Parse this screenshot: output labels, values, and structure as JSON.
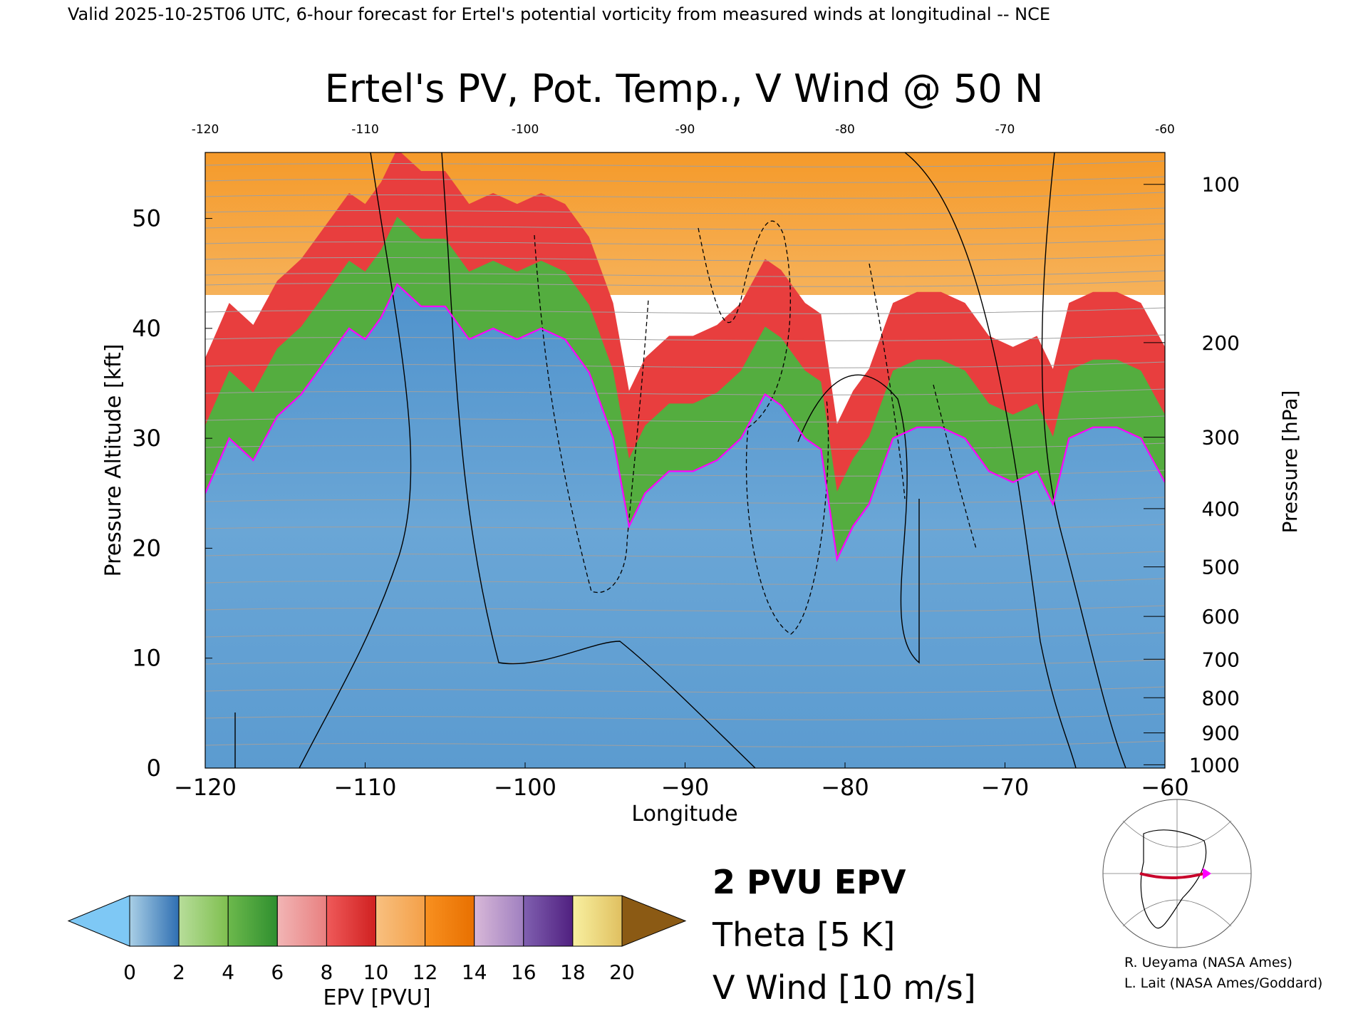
{
  "header_text": "Valid 2025-10-25T06 UTC, 6-hour forecast for Ertel's potential vorticity from measured winds at longitudinal -- NCE",
  "chart_data": {
    "type": "heatmap",
    "title": "Ertel's PV, Pot. Temp., V Wind @ 50 N",
    "xlabel": "Longitude",
    "ylabel_left": "Pressure Altitude [kft]",
    "ylabel_right": "Pressure [hPa]",
    "xlim": [
      -120,
      -60
    ],
    "ylim": [
      0,
      56
    ],
    "x_ticks": [
      -120,
      -110,
      -100,
      -90,
      -80,
      -70,
      -60
    ],
    "x_tick_labels": [
      "−120",
      "−110",
      "−100",
      "−90",
      "−80",
      "−70",
      "−60"
    ],
    "top_x_tick_labels": [
      "-120",
      "-110",
      "-100",
      "-90",
      "-80",
      "-70",
      "-60"
    ],
    "y_ticks": [
      0,
      10,
      20,
      30,
      40,
      50
    ],
    "y_tick_labels": [
      "0",
      "10",
      "20",
      "30",
      "40",
      "50"
    ],
    "pressure_ticks": [
      {
        "hpa": 100,
        "kft": 53.1,
        "label": "100"
      },
      {
        "hpa": 200,
        "kft": 38.7,
        "label": "200"
      },
      {
        "hpa": 300,
        "kft": 30.1,
        "label": "300"
      },
      {
        "hpa": 400,
        "kft": 23.6,
        "label": "400"
      },
      {
        "hpa": 500,
        "kft": 18.3,
        "label": "500"
      },
      {
        "hpa": 600,
        "kft": 13.8,
        "label": "600"
      },
      {
        "hpa": 700,
        "kft": 9.9,
        "label": "700"
      },
      {
        "hpa": 800,
        "kft": 6.4,
        "label": "800"
      },
      {
        "hpa": 900,
        "kft": 3.2,
        "label": "900"
      },
      {
        "hpa": 1000,
        "kft": 0.3,
        "label": "1000"
      }
    ],
    "pv_2pvu_line": {
      "lon": [
        -120,
        -118.5,
        -117,
        -115.5,
        -114,
        -112.5,
        -111,
        -110,
        -109,
        -108,
        -106.5,
        -105,
        -103.5,
        -102,
        -100.5,
        -99,
        -97.5,
        -96,
        -94.5,
        -93.5,
        -92.5,
        -91,
        -89.5,
        -88,
        -86.5,
        -85,
        -84,
        -82.5,
        -81.5,
        -80.5,
        -79.5,
        -78.5,
        -77,
        -75.5,
        -74,
        -72.5,
        -71,
        -69.5,
        -68,
        -67,
        -66,
        -64.5,
        -63,
        -61.5,
        -60
      ],
      "kft": [
        25,
        30,
        28,
        32,
        34,
        37,
        40,
        39,
        41,
        44,
        42,
        42,
        39,
        40,
        39,
        40,
        39,
        36,
        30,
        22,
        25,
        27,
        27,
        28,
        30,
        34,
        33,
        30,
        29,
        19,
        22,
        24,
        30,
        31,
        31,
        30,
        27,
        26,
        27,
        24,
        30,
        31,
        31,
        30,
        26
      ]
    },
    "pv_colorbar": {
      "label": "EPV [PVU]",
      "tick_labels": [
        "0",
        "2",
        "4",
        "6",
        "8",
        "10",
        "12",
        "14",
        "16",
        "18",
        "20"
      ],
      "colors": {
        "below_min": "#7ec8f5",
        "above_max": "#8b5a14",
        "c0_2": [
          "#a9cfe6",
          "#2f6fb2"
        ],
        "c2_4": [
          "#b7dd9a",
          "#7fbf4f"
        ],
        "c4_6": [
          "#6cb94c",
          "#2f8f2f"
        ],
        "c6_8": [
          "#f2b5b5",
          "#e88080"
        ],
        "c8_10": [
          "#ef5a5a",
          "#d02020"
        ],
        "c10_12": [
          "#f8c080",
          "#f4a048"
        ],
        "c12_14": [
          "#f89020",
          "#e87000"
        ],
        "c14_16": [
          "#d8b8d8",
          "#a080c0"
        ],
        "c16_18": [
          "#8060b0",
          "#502080"
        ],
        "c18_20": [
          "#f8f0a0",
          "#e0c060"
        ]
      }
    },
    "v_wind_contours": [
      "-30",
      "-10",
      "0",
      "10",
      "30"
    ],
    "legend": [
      {
        "label": "2 PVU EPV",
        "color": "#ff00ff"
      },
      {
        "label": "Theta [5 K]",
        "color": "#a0a0a0"
      },
      {
        "label": "V Wind [10 m/s]",
        "color": "#000000"
      }
    ]
  },
  "credits": [
    "R. Ueyama (NASA Ames)",
    "L. Lait (NASA Ames/Goddard)"
  ]
}
